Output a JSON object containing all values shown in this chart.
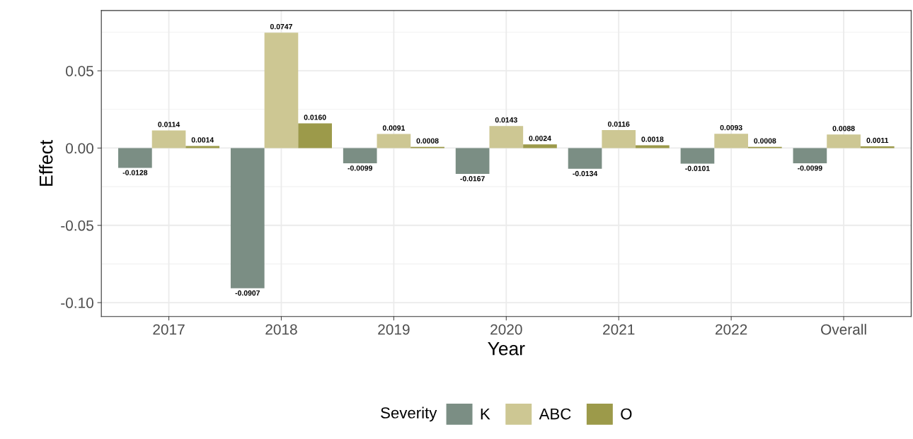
{
  "chart_data": {
    "type": "bar",
    "xlabel": "Year",
    "ylabel": "Effect",
    "legend_title": "Severity",
    "categories": [
      "2017",
      "2018",
      "2019",
      "2020",
      "2021",
      "2022",
      "Overall"
    ],
    "series": [
      {
        "name": "K",
        "color": "#7b8e84",
        "values": [
          -0.0128,
          -0.0907,
          -0.0099,
          -0.0167,
          -0.0134,
          -0.0101,
          -0.0099
        ],
        "value_labels": [
          "-0.0128",
          "-0.0907",
          "-0.0099",
          "-0.0167",
          "-0.0134",
          "-0.0101",
          "-0.0099"
        ]
      },
      {
        "name": "ABC",
        "color": "#cdc793",
        "values": [
          0.0114,
          0.0747,
          0.0091,
          0.0143,
          0.0116,
          0.0093,
          0.0088
        ],
        "value_labels": [
          "0.0114",
          "0.0747",
          "0.0091",
          "0.0143",
          "0.0116",
          "0.0093",
          "0.0088"
        ]
      },
      {
        "name": "O",
        "color": "#9c9a4a",
        "values": [
          0.0014,
          0.016,
          0.0008,
          0.0024,
          0.0018,
          0.0008,
          0.0011
        ],
        "value_labels": [
          "0.0014",
          "0.0160",
          "0.0008",
          "0.0024",
          "0.0018",
          "0.0008",
          "0.0011"
        ]
      }
    ],
    "ylim": [
      -0.109,
      0.089
    ],
    "yticks": [
      {
        "value": -0.1,
        "label": "-0.10"
      },
      {
        "value": -0.05,
        "label": "-0.05"
      },
      {
        "value": 0,
        "label": "0.00"
      },
      {
        "value": 0.05,
        "label": "0.05"
      }
    ],
    "grid": true,
    "legend": "bottom"
  }
}
